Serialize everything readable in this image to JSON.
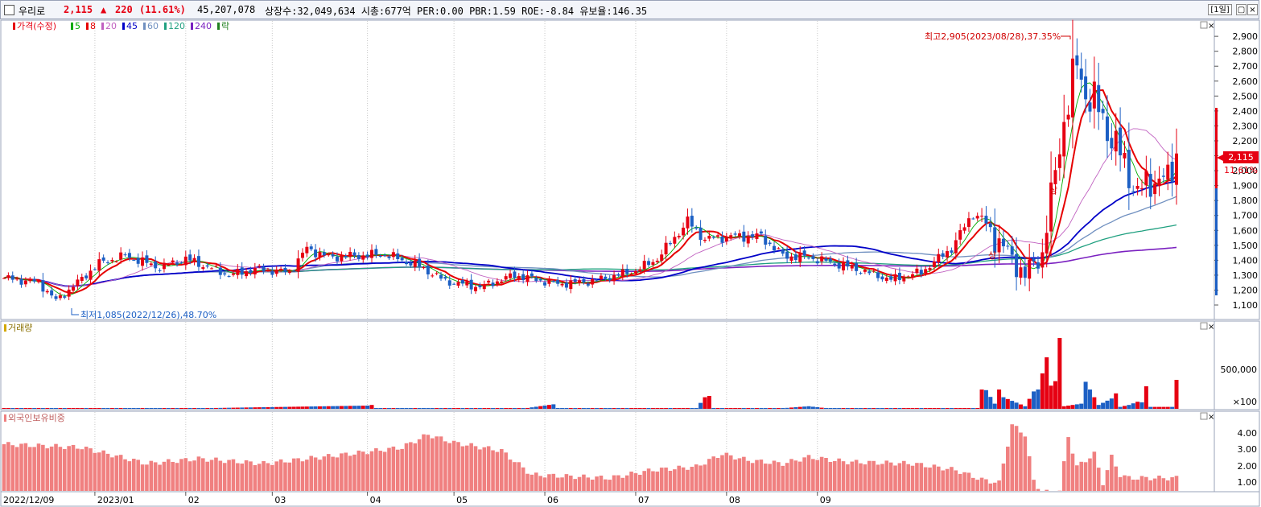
{
  "header": {
    "name": "우리로",
    "price": "2,115",
    "change_arrow": "▲",
    "change": "220",
    "change_pct": "(11.61%)",
    "volume": "45,207,078",
    "stats": "상장수:32,049,634 시총:677억 PER:0.00 PBR:1.59 ROE:-8.84 유보율:146.35",
    "period": "[1일]"
  },
  "legend": {
    "price_label": "가격(수정)",
    "ma": [
      {
        "label": "5",
        "color": "#00aa00"
      },
      {
        "label": "8",
        "color": "#e60000"
      },
      {
        "label": "20",
        "color": "#c060c0"
      },
      {
        "label": "45",
        "color": "#0000c8"
      },
      {
        "label": "60",
        "color": "#7090c0"
      },
      {
        "label": "120",
        "color": "#20a080"
      },
      {
        "label": "240",
        "color": "#7a20c0"
      },
      {
        "label": "락",
        "color": "#208020"
      }
    ]
  },
  "annotations": {
    "high": "최고2,905(2023/08/28),37.35%",
    "low": "최저1,085(2022/12/26),48.70%",
    "marker": "상"
  },
  "price_badge": {
    "price": "2,115",
    "pct": "11.61%"
  },
  "volume_panel": {
    "title": "거래량",
    "ticks": [
      "500,000",
      "×100"
    ]
  },
  "foreign_panel": {
    "title": "외국인보유비중",
    "ticks": [
      "4.00",
      "3.00",
      "2.00",
      "1.00"
    ]
  },
  "x_axis": [
    "2022/12/09",
    "2023/01",
    "02",
    "03",
    "04",
    "05",
    "06",
    "07",
    "08",
    "09"
  ],
  "colors": {
    "up": "#e60012",
    "down": "#1c5fc4",
    "grid": "#c8c8c8",
    "bar_foreign": "#f08080"
  },
  "chart_data": {
    "type": "candlestick",
    "y_ticks": [
      1100,
      1200,
      1300,
      1400,
      1500,
      1600,
      1700,
      1800,
      1900,
      2000,
      2100,
      2200,
      2300,
      2400,
      2500,
      2600,
      2700,
      2800,
      2900
    ],
    "ylim": [
      1030,
      2960
    ],
    "period_high": {
      "value": 2905,
      "date": "2023/08/28"
    },
    "period_low": {
      "value": 1085,
      "date": "2022/12/26"
    },
    "last_close": 2115,
    "price_anchors": [
      [
        0,
        1280
      ],
      [
        8,
        1250
      ],
      [
        12,
        1130
      ],
      [
        15,
        1200
      ],
      [
        22,
        1380
      ],
      [
        28,
        1430
      ],
      [
        36,
        1350
      ],
      [
        42,
        1410
      ],
      [
        52,
        1300
      ],
      [
        58,
        1340
      ],
      [
        66,
        1320
      ],
      [
        70,
        1480
      ],
      [
        75,
        1420
      ],
      [
        88,
        1440
      ],
      [
        96,
        1360
      ],
      [
        102,
        1260
      ],
      [
        110,
        1220
      ],
      [
        118,
        1300
      ],
      [
        128,
        1240
      ],
      [
        136,
        1260
      ],
      [
        146,
        1330
      ],
      [
        151,
        1410
      ],
      [
        158,
        1660
      ],
      [
        162,
        1540
      ],
      [
        168,
        1560
      ],
      [
        175,
        1560
      ],
      [
        180,
        1430
      ],
      [
        186,
        1420
      ],
      [
        196,
        1350
      ],
      [
        205,
        1270
      ],
      [
        212,
        1320
      ],
      [
        219,
        1480
      ],
      [
        224,
        1720
      ],
      [
        229,
        1560
      ],
      [
        236,
        1300
      ],
      [
        240,
        1450
      ],
      [
        245,
        2350
      ],
      [
        248,
        2700
      ],
      [
        250,
        2540
      ],
      [
        252,
        2450
      ],
      [
        256,
        2230
      ],
      [
        262,
        1850
      ],
      [
        266,
        1950
      ],
      [
        269,
        1930
      ],
      [
        271,
        2115
      ]
    ],
    "volume_anchors": [
      [
        0,
        4
      ],
      [
        40,
        4
      ],
      [
        84,
        50
      ],
      [
        85,
        60
      ],
      [
        86,
        6
      ],
      [
        120,
        4
      ],
      [
        127,
        70
      ],
      [
        128,
        10
      ],
      [
        160,
        4
      ],
      [
        162,
        180
      ],
      [
        163,
        200
      ],
      [
        164,
        8
      ],
      [
        180,
        10
      ],
      [
        186,
        40
      ],
      [
        190,
        10
      ],
      [
        225,
        10
      ],
      [
        226,
        300
      ],
      [
        227,
        290
      ],
      [
        229,
        80
      ],
      [
        230,
        300
      ],
      [
        231,
        180
      ],
      [
        236,
        40
      ],
      [
        238,
        270
      ],
      [
        239,
        300
      ],
      [
        241,
        800
      ],
      [
        242,
        360
      ],
      [
        243,
        430
      ],
      [
        244,
        1100
      ],
      [
        245,
        40
      ],
      [
        249,
        80
      ],
      [
        250,
        420
      ],
      [
        253,
        60
      ],
      [
        256,
        160
      ],
      [
        257,
        240
      ],
      [
        258,
        30
      ],
      [
        260,
        60
      ],
      [
        262,
        110
      ],
      [
        263,
        100
      ],
      [
        264,
        350
      ]
    ],
    "foreign_anchors": [
      [
        0,
        3.4
      ],
      [
        18,
        3.2
      ],
      [
        33,
        2.2
      ],
      [
        45,
        2.5
      ],
      [
        60,
        2.2
      ],
      [
        80,
        2.8
      ],
      [
        92,
        3.2
      ],
      [
        98,
        4.0
      ],
      [
        104,
        3.5
      ],
      [
        115,
        3.0
      ],
      [
        122,
        1.5
      ],
      [
        140,
        1.3
      ],
      [
        150,
        1.8
      ],
      [
        160,
        2.0
      ],
      [
        166,
        2.8
      ],
      [
        172,
        2.4
      ],
      [
        180,
        2.2
      ],
      [
        186,
        2.6
      ],
      [
        195,
        2.3
      ],
      [
        210,
        2.2
      ],
      [
        220,
        1.8
      ],
      [
        226,
        1.2
      ],
      [
        230,
        1.0
      ],
      [
        233,
        4.6
      ],
      [
        236,
        4.0
      ],
      [
        238,
        1.1
      ],
      [
        240,
        0.4
      ],
      [
        244,
        0.5
      ],
      [
        246,
        3.9
      ],
      [
        248,
        2.0
      ],
      [
        252,
        2.8
      ],
      [
        254,
        1.0
      ],
      [
        256,
        2.6
      ],
      [
        258,
        1.5
      ],
      [
        260,
        1.3
      ]
    ]
  }
}
